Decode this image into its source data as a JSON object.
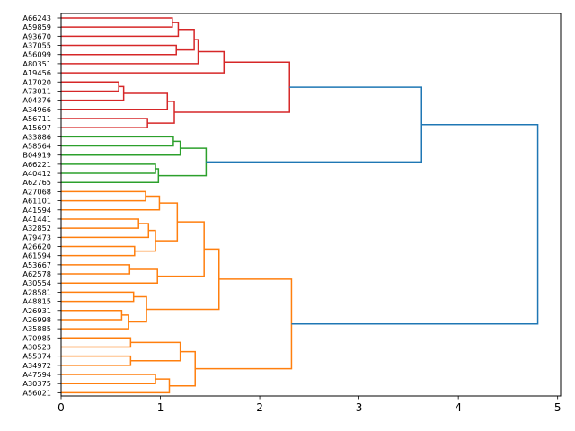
{
  "chart_data": {
    "type": "dendrogram",
    "orientation": "horizontal",
    "title": "",
    "xlabel": "",
    "ylabel": "",
    "xlim": [
      0,
      5.03
    ],
    "x_ticks": [
      0,
      1,
      2,
      3,
      4,
      5
    ],
    "x_tick_labels": [
      "0",
      "1",
      "2",
      "3",
      "4",
      "5"
    ],
    "cluster_colors": {
      "red": "#d62728",
      "green": "#2ca02c",
      "orange": "#ff7f0e",
      "root": "#1f77b4"
    },
    "leaves": [
      "A66243",
      "A59859",
      "A93670",
      "A37055",
      "A56099",
      "A80351",
      "A19456",
      "A17020",
      "A73011",
      "A04376",
      "A34966",
      "A56711",
      "A15697",
      "A33886",
      "A58564",
      "B04919",
      "A66221",
      "A40412",
      "A62765",
      "A27068",
      "A61101",
      "A41594",
      "A41441",
      "A32852",
      "A79473",
      "A26620",
      "A61594",
      "A53667",
      "A62578",
      "A30554",
      "A28581",
      "A48815",
      "A26931",
      "A26998",
      "A35885",
      "A70985",
      "A30523",
      "A55374",
      "A34972",
      "A47594",
      "A30375",
      "A56021"
    ],
    "merges": [
      {
        "left": "A66243",
        "right": "A59859",
        "height": 1.12,
        "color": "red"
      },
      {
        "left": "m0",
        "right": "A93670",
        "height": 1.18,
        "color": "red"
      },
      {
        "left": "A37055",
        "right": "A56099",
        "height": 1.16,
        "color": "red"
      },
      {
        "left": "m1",
        "right": "m2",
        "height": 1.34,
        "color": "red"
      },
      {
        "left": "m3",
        "right": "A80351",
        "height": 1.38,
        "color": "red"
      },
      {
        "left": "m4",
        "right": "A19456",
        "height": 1.64,
        "color": "red"
      },
      {
        "left": "A17020",
        "right": "A73011",
        "height": 0.58,
        "color": "red"
      },
      {
        "left": "m6",
        "right": "A04376",
        "height": 0.63,
        "color": "red"
      },
      {
        "left": "m7",
        "right": "A34966",
        "height": 1.07,
        "color": "red"
      },
      {
        "left": "A56711",
        "right": "A15697",
        "height": 0.87,
        "color": "red"
      },
      {
        "left": "m8",
        "right": "m9",
        "height": 1.14,
        "color": "red"
      },
      {
        "left": "m5",
        "right": "m10",
        "height": 2.3,
        "color": "red"
      },
      {
        "left": "A33886",
        "right": "A58564",
        "height": 1.13,
        "color": "green"
      },
      {
        "left": "m12",
        "right": "B04919",
        "height": 1.2,
        "color": "green"
      },
      {
        "left": "A66221",
        "right": "A40412",
        "height": 0.95,
        "color": "green"
      },
      {
        "left": "m14",
        "right": "A62765",
        "height": 0.98,
        "color": "green"
      },
      {
        "left": "m13",
        "right": "m15",
        "height": 1.46,
        "color": "green"
      },
      {
        "left": "m11",
        "right": "m16",
        "height": 3.63,
        "color": "root"
      },
      {
        "left": "A27068",
        "right": "A61101",
        "height": 0.85,
        "color": "orange"
      },
      {
        "left": "m18",
        "right": "A41594",
        "height": 0.99,
        "color": "orange"
      },
      {
        "left": "A41441",
        "right": "A32852",
        "height": 0.78,
        "color": "orange"
      },
      {
        "left": "m20",
        "right": "A79473",
        "height": 0.88,
        "color": "orange"
      },
      {
        "left": "A26620",
        "right": "A61594",
        "height": 0.74,
        "color": "orange"
      },
      {
        "left": "m21",
        "right": "m22",
        "height": 0.95,
        "color": "orange"
      },
      {
        "left": "m19",
        "right": "m23",
        "height": 1.17,
        "color": "orange"
      },
      {
        "left": "A53667",
        "right": "A62578",
        "height": 0.69,
        "color": "orange"
      },
      {
        "left": "m25",
        "right": "A30554",
        "height": 0.97,
        "color": "orange"
      },
      {
        "left": "m24",
        "right": "m26",
        "height": 1.44,
        "color": "orange"
      },
      {
        "left": "A28581",
        "right": "A48815",
        "height": 0.73,
        "color": "orange"
      },
      {
        "left": "A26931",
        "right": "A26998",
        "height": 0.61,
        "color": "orange"
      },
      {
        "left": "m29",
        "right": "A35885",
        "height": 0.68,
        "color": "orange"
      },
      {
        "left": "m28",
        "right": "m30",
        "height": 0.86,
        "color": "orange"
      },
      {
        "left": "m27",
        "right": "m31",
        "height": 1.59,
        "color": "orange"
      },
      {
        "left": "A70985",
        "right": "A30523",
        "height": 0.7,
        "color": "orange"
      },
      {
        "left": "A55374",
        "right": "A34972",
        "height": 0.7,
        "color": "orange"
      },
      {
        "left": "m33",
        "right": "m34",
        "height": 1.2,
        "color": "orange"
      },
      {
        "left": "A47594",
        "right": "A30375",
        "height": 0.95,
        "color": "orange"
      },
      {
        "left": "m36",
        "right": "A56021",
        "height": 1.09,
        "color": "orange"
      },
      {
        "left": "m35",
        "right": "m37",
        "height": 1.35,
        "color": "orange"
      },
      {
        "left": "m32",
        "right": "m38",
        "height": 2.32,
        "color": "orange"
      },
      {
        "left": "m17",
        "right": "m39",
        "height": 4.8,
        "color": "root"
      }
    ]
  }
}
